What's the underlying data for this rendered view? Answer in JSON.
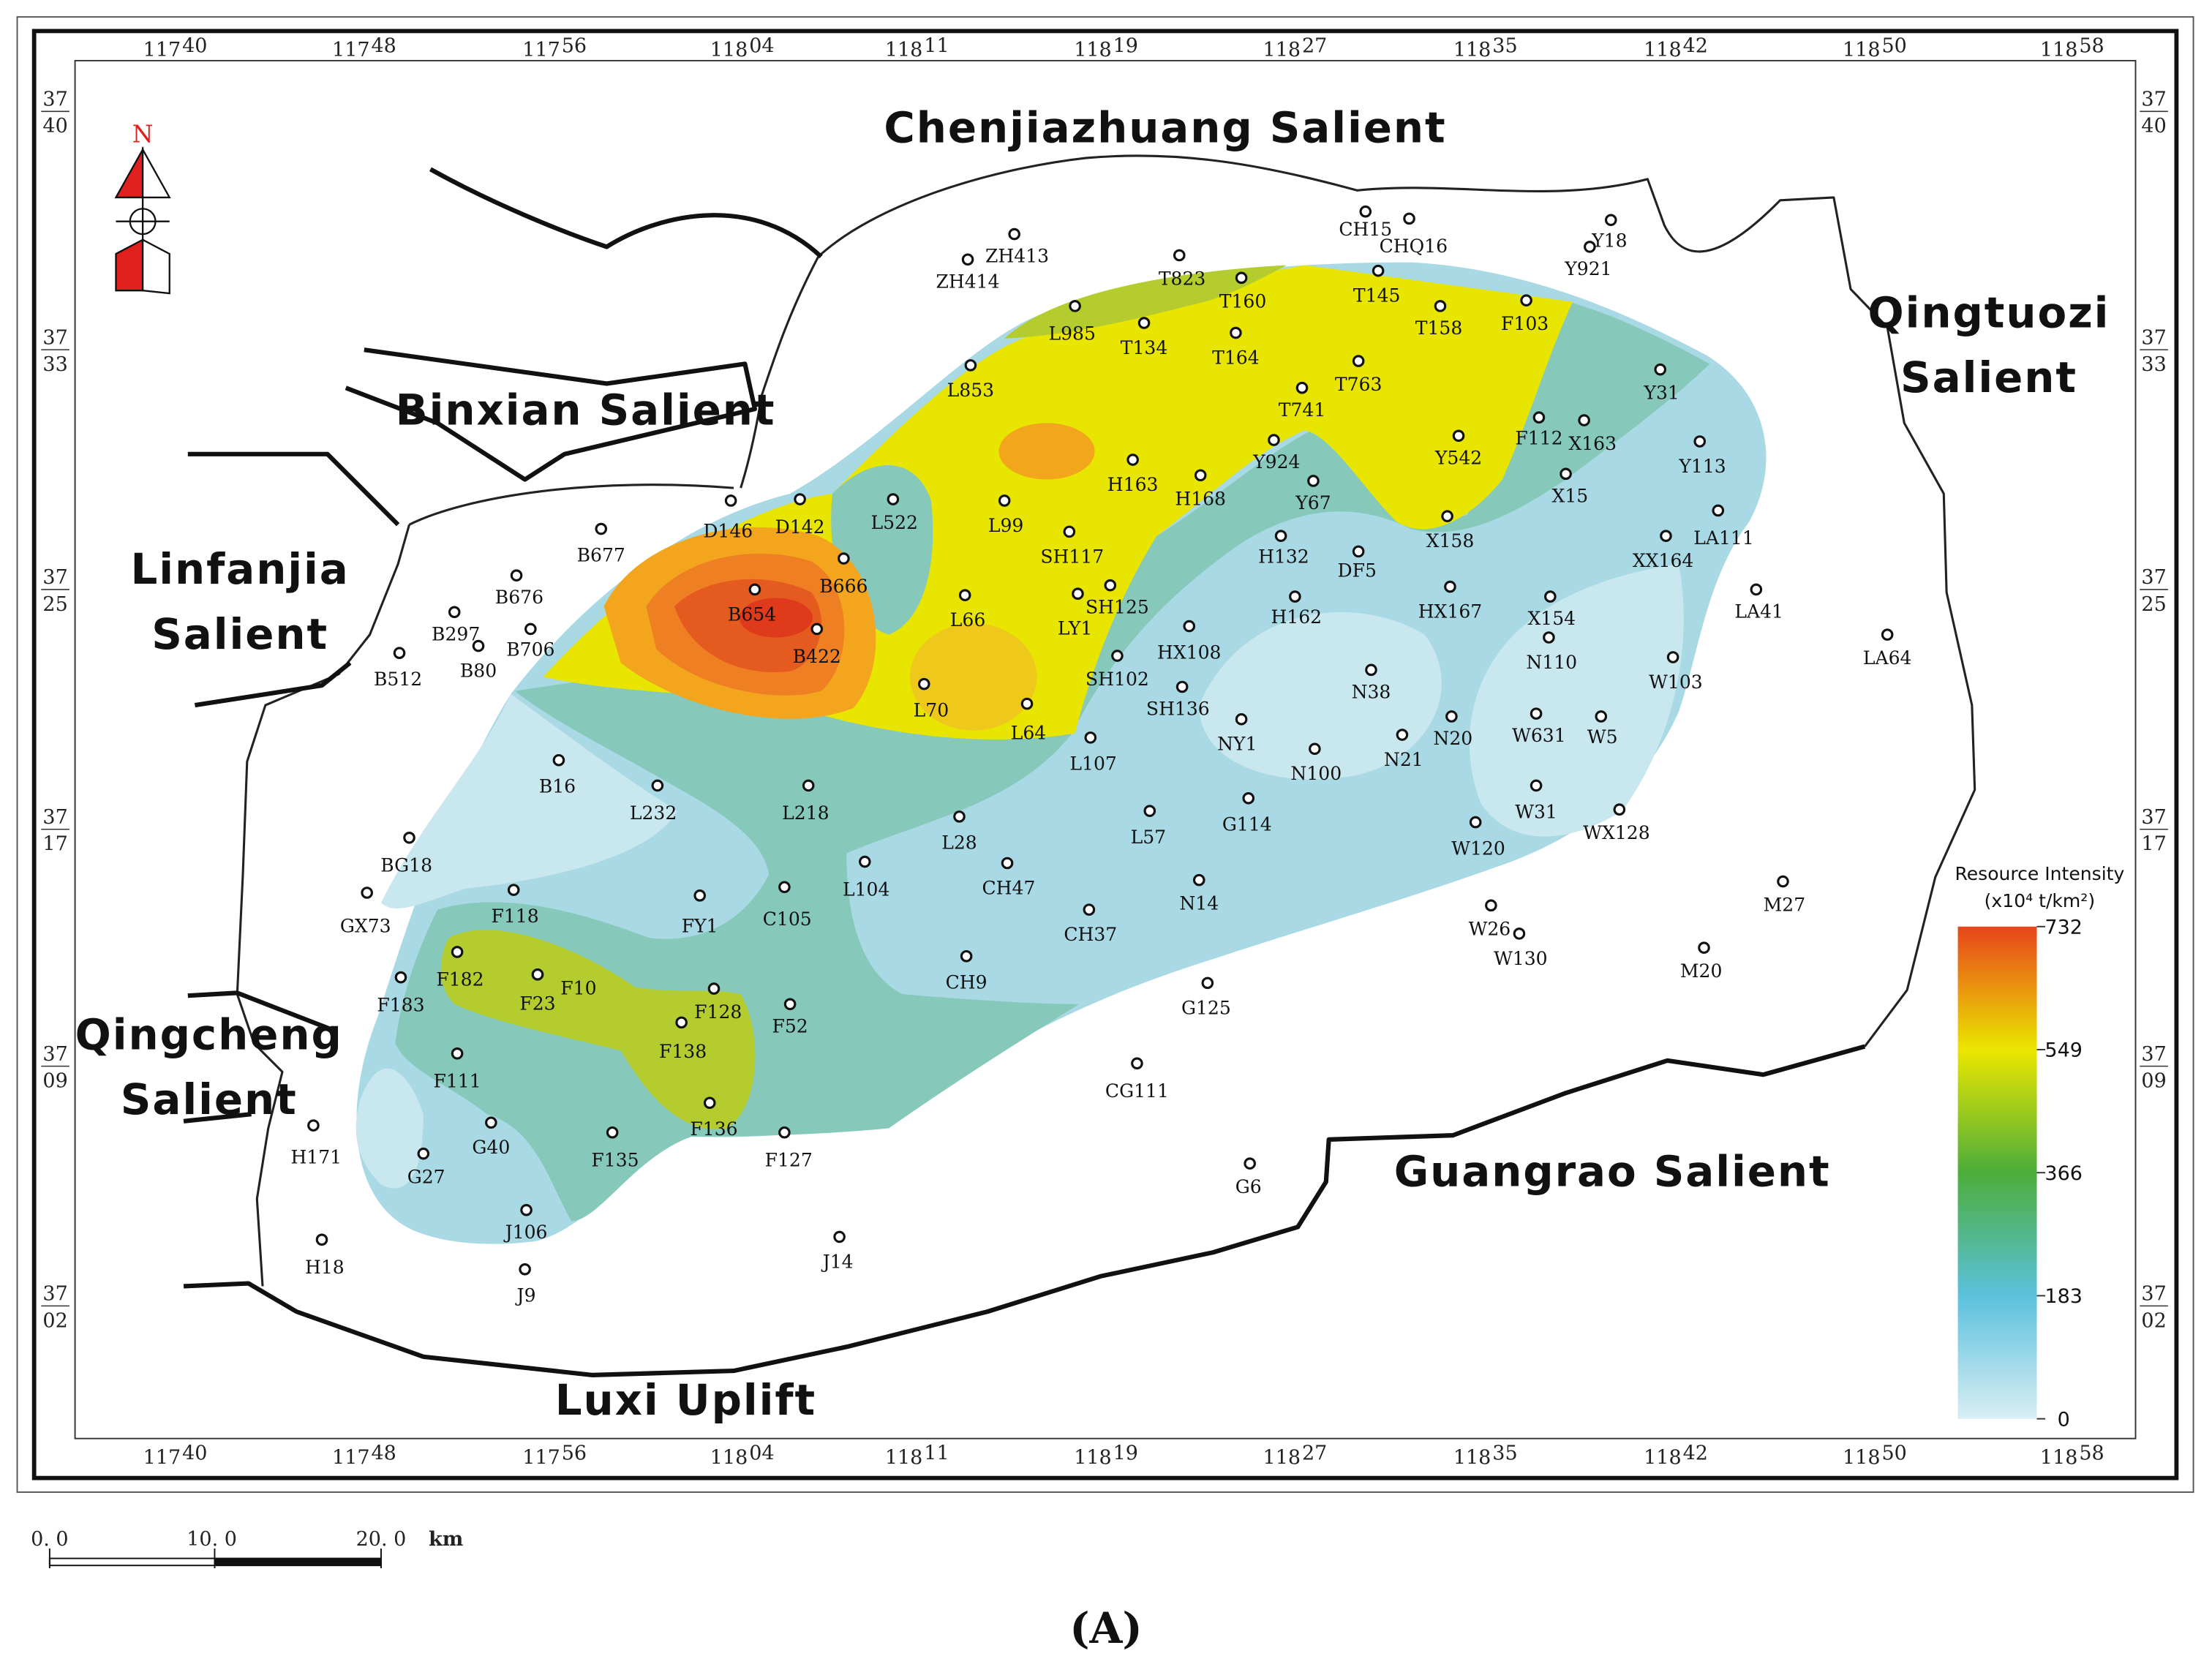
{
  "longitude_labels": [
    {
      "deg": "117",
      "min": "40"
    },
    {
      "deg": "117",
      "min": "48"
    },
    {
      "deg": "117",
      "min": "56"
    },
    {
      "deg": "118",
      "min": "04"
    },
    {
      "deg": "118",
      "min": "11"
    },
    {
      "deg": "118",
      "min": "19"
    },
    {
      "deg": "118",
      "min": "27"
    },
    {
      "deg": "118",
      "min": "35"
    },
    {
      "deg": "118",
      "min": "42"
    },
    {
      "deg": "118",
      "min": "50"
    },
    {
      "deg": "118",
      "min": "58"
    }
  ],
  "latitude_labels": [
    {
      "deg": "37",
      "min": "40"
    },
    {
      "deg": "37",
      "min": "33"
    },
    {
      "deg": "37",
      "min": "25"
    },
    {
      "deg": "37",
      "min": "17"
    },
    {
      "deg": "37",
      "min": "09"
    },
    {
      "deg": "37",
      "min": "02"
    }
  ],
  "compass": {
    "label": "N"
  },
  "regions": [
    {
      "lines": [
        "Chenjiazhuang  Salient"
      ]
    },
    {
      "lines": [
        "Qingtuozi",
        "Salient"
      ]
    },
    {
      "lines": [
        "Binxian Salient"
      ]
    },
    {
      "lines": [
        "Linfanjia",
        "Salient"
      ]
    },
    {
      "lines": [
        "Qingcheng",
        "Salient"
      ]
    },
    {
      "lines": [
        "Guangrao  Salient"
      ]
    },
    {
      "lines": [
        "Luxi  Uplift"
      ]
    }
  ],
  "wells": [
    {
      "name": "ZH413"
    },
    {
      "name": "ZH414"
    },
    {
      "name": "T823"
    },
    {
      "name": "CH15"
    },
    {
      "name": "CHQ16"
    },
    {
      "name": "Y18"
    },
    {
      "name": "Y921"
    },
    {
      "name": "T160"
    },
    {
      "name": "T145"
    },
    {
      "name": "L985"
    },
    {
      "name": "T134"
    },
    {
      "name": "T164"
    },
    {
      "name": "T158"
    },
    {
      "name": "F103"
    },
    {
      "name": "T763"
    },
    {
      "name": "L853"
    },
    {
      "name": "T741"
    },
    {
      "name": "Y31"
    },
    {
      "name": "F112"
    },
    {
      "name": "X163"
    },
    {
      "name": "Y113"
    },
    {
      "name": "Y542"
    },
    {
      "name": "Y924"
    },
    {
      "name": "H163"
    },
    {
      "name": "H168"
    },
    {
      "name": "Y67"
    },
    {
      "name": "X15"
    },
    {
      "name": "L522"
    },
    {
      "name": "L99"
    },
    {
      "name": "D146"
    },
    {
      "name": "D142"
    },
    {
      "name": "B677"
    },
    {
      "name": "LA111"
    },
    {
      "name": "X158"
    },
    {
      "name": "SH117"
    },
    {
      "name": "H132"
    },
    {
      "name": "XX164"
    },
    {
      "name": "DF5"
    },
    {
      "name": "B666"
    },
    {
      "name": "B676"
    },
    {
      "name": "SH125"
    },
    {
      "name": "LY1",
      "color": "#e0201c"
    },
    {
      "name": "L66"
    },
    {
      "name": "B654"
    },
    {
      "name": "HX167"
    },
    {
      "name": "X154"
    },
    {
      "name": "LA41"
    },
    {
      "name": "H162"
    },
    {
      "name": "B297"
    },
    {
      "name": "B706"
    },
    {
      "name": "HX108"
    },
    {
      "name": "B422"
    },
    {
      "name": "N110"
    },
    {
      "name": "LA64"
    },
    {
      "name": "B512"
    },
    {
      "name": "B80"
    },
    {
      "name": "SH102"
    },
    {
      "name": "W103"
    },
    {
      "name": "N38"
    },
    {
      "name": "SH136"
    },
    {
      "name": "L70"
    },
    {
      "name": "L64"
    },
    {
      "name": "NY1",
      "color": "#e0201c"
    },
    {
      "name": "N20"
    },
    {
      "name": "W631"
    },
    {
      "name": "W5"
    },
    {
      "name": "N21"
    },
    {
      "name": "N100"
    },
    {
      "name": "L107"
    },
    {
      "name": "B16"
    },
    {
      "name": "L232"
    },
    {
      "name": "L218"
    },
    {
      "name": "W31"
    },
    {
      "name": "WX128"
    },
    {
      "name": "G114"
    },
    {
      "name": "L57"
    },
    {
      "name": "L28"
    },
    {
      "name": "W120"
    },
    {
      "name": "BG18"
    },
    {
      "name": "L104"
    },
    {
      "name": "CH47"
    },
    {
      "name": "M27"
    },
    {
      "name": "N14"
    },
    {
      "name": "F118"
    },
    {
      "name": "GX73"
    },
    {
      "name": "FY1",
      "color": "#e0201c"
    },
    {
      "name": "C105"
    },
    {
      "name": "CH37"
    },
    {
      "name": "W26"
    },
    {
      "name": "W130"
    },
    {
      "name": "M20"
    },
    {
      "name": "CH9"
    },
    {
      "name": "F182"
    },
    {
      "name": "F23"
    },
    {
      "name": "F10"
    },
    {
      "name": "F183"
    },
    {
      "name": "G125"
    },
    {
      "name": "F128"
    },
    {
      "name": "F52"
    },
    {
      "name": "F138"
    },
    {
      "name": "F111"
    },
    {
      "name": "CG111"
    },
    {
      "name": "F136"
    },
    {
      "name": "G40"
    },
    {
      "name": "H171"
    },
    {
      "name": "F135"
    },
    {
      "name": "F127"
    },
    {
      "name": "G27"
    },
    {
      "name": "G6"
    },
    {
      "name": "J106"
    },
    {
      "name": "H18"
    },
    {
      "name": "J14"
    },
    {
      "name": "J9"
    }
  ],
  "legend": {
    "title": "Resource Intensity",
    "unit": "(x10⁴ t/km²)",
    "ticks": [
      732,
      549,
      366,
      183,
      0
    ],
    "colors": [
      "#e8441c",
      "#ebe600",
      "#4cad3a",
      "#5bc1dd",
      "#d9eef4"
    ]
  },
  "scale_bar": {
    "labels": [
      "0. 0",
      "10. 0",
      "20. 0"
    ],
    "unit": "km"
  },
  "caption": "(A)"
}
